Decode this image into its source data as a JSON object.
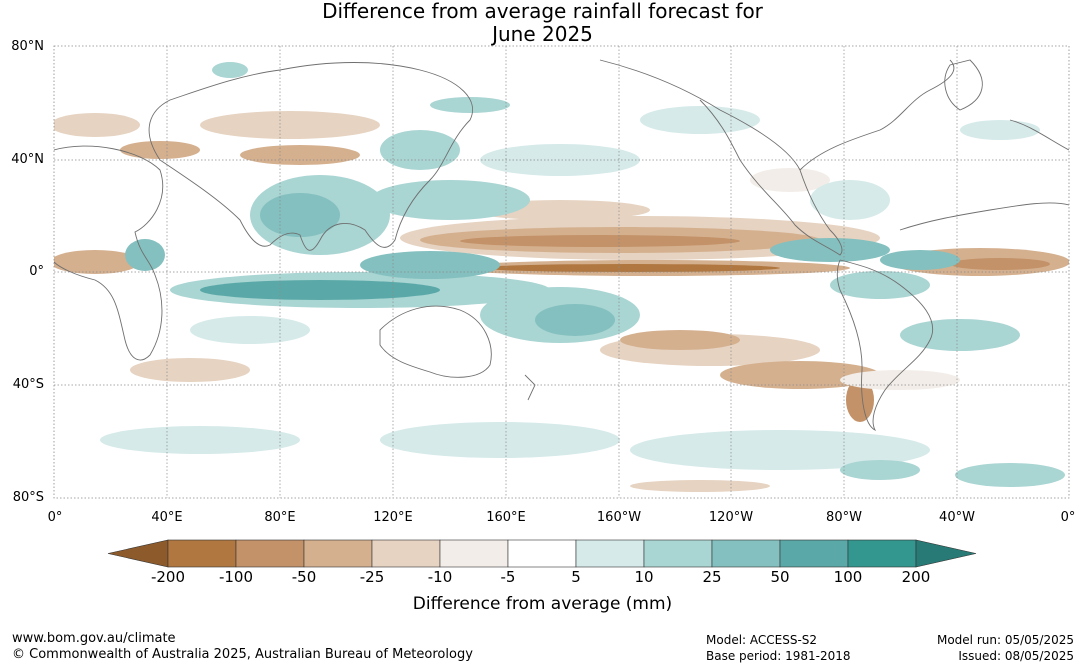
{
  "title_line1": "Difference from average rainfall forecast for",
  "title_line2": "June 2025",
  "y_ticks": [
    "80°N",
    "40°N",
    "0°",
    "40°S",
    "80°S"
  ],
  "x_ticks": [
    "0°",
    "40°E",
    "80°E",
    "120°E",
    "160°E",
    "160°W",
    "120°W",
    "80°W",
    "40°W",
    "0°"
  ],
  "colorbar": {
    "labels": [
      "-200",
      "-100",
      "-50",
      "-25",
      "-10",
      "-5",
      "5",
      "10",
      "25",
      "50",
      "100",
      "200"
    ],
    "colors": [
      "#8c5a2b",
      "#b07840",
      "#c39268",
      "#d4b08f",
      "#e6d3c1",
      "#f2ede8",
      "#ffffff",
      "#d5eae9",
      "#a9d5d3",
      "#84c0bf",
      "#5aa9a8",
      "#33968f",
      "#277a75"
    ],
    "title": "Difference from average (mm)"
  },
  "footer": {
    "website": "www.bom.gov.au/climate",
    "copyright": "© Commonwealth of Australia 2025, Australian Bureau of Meteorology",
    "model": "Model: ACCESS-S2",
    "base_period": "Base period: 1981-2018",
    "model_run": "Model run: 05/05/2025",
    "issued": "Issued: 08/05/2025"
  }
}
